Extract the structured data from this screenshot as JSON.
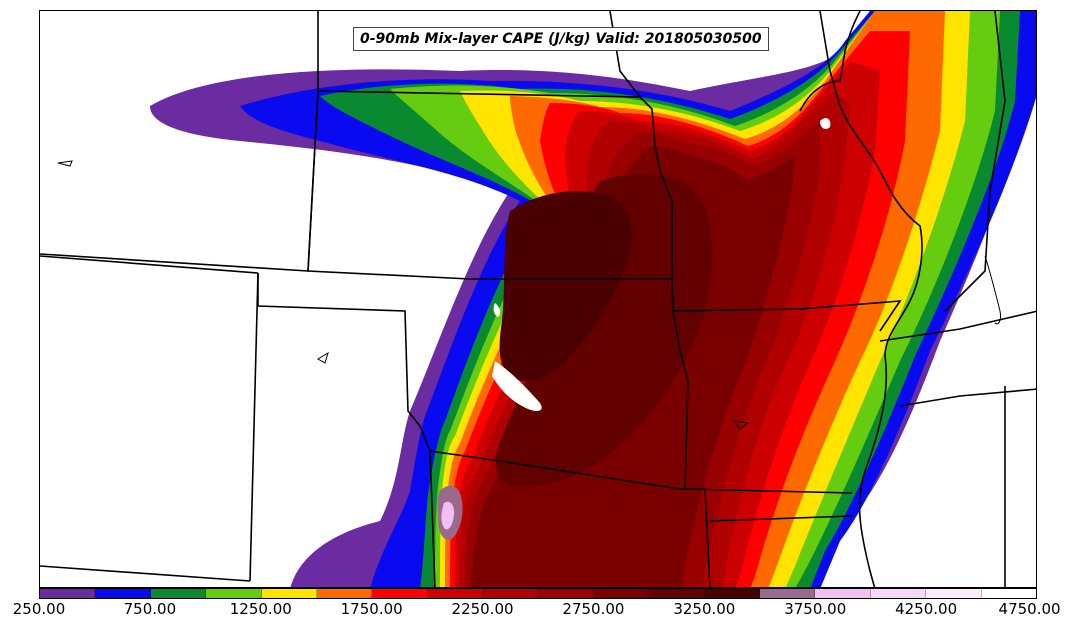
{
  "title": "0-90mb Mix-layer CAPE (J/kg) Valid: 201805030500",
  "colorbar": {
    "colors": [
      "#6a2ca0",
      "#0a0af0",
      "#0a8a30",
      "#66cc10",
      "#ffe400",
      "#ff6a00",
      "#ff0000",
      "#cc0000",
      "#b00000",
      "#990000",
      "#7a0000",
      "#620000",
      "#4a0000",
      "#9a6a8a",
      "#f2bff2",
      "#f8d8f8",
      "#fcecfc",
      "#ffffff"
    ],
    "labels": [
      "250.00",
      "750.00",
      "1250.00",
      "1750.00",
      "2250.00",
      "2750.00",
      "3250.00",
      "3750.00",
      "4250.00",
      "4750.00"
    ]
  },
  "field": {
    "variable": "0-90mb Mix-layer CAPE",
    "units": "J/kg",
    "valid": "201805030500"
  }
}
